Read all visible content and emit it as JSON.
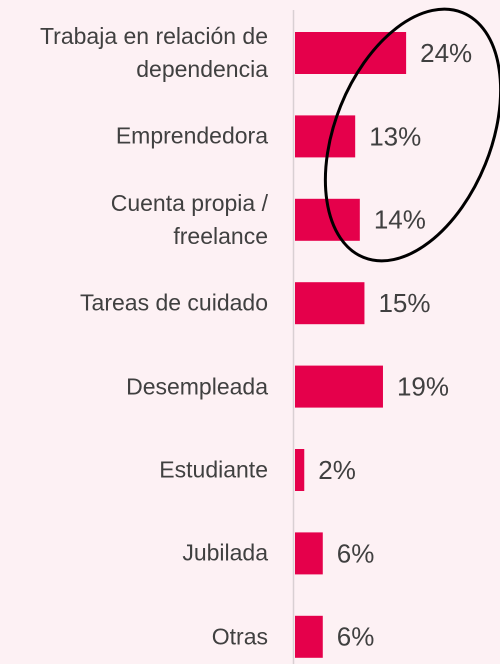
{
  "chart_data": {
    "type": "bar",
    "orientation": "horizontal",
    "categories": [
      "Trabaja en relación de dependencia",
      "Emprendedora",
      "Cuenta propia / freelance",
      "Tareas de cuidado",
      "Desempleada",
      "Estudiante",
      "Jubilada",
      "Otras"
    ],
    "values": [
      24,
      13,
      14,
      15,
      19,
      2,
      6,
      6
    ],
    "value_labels": [
      "24%",
      "13%",
      "14%",
      "15%",
      "19%",
      "2%",
      "6%",
      "6%"
    ],
    "color": "#e5004b"
  }
}
